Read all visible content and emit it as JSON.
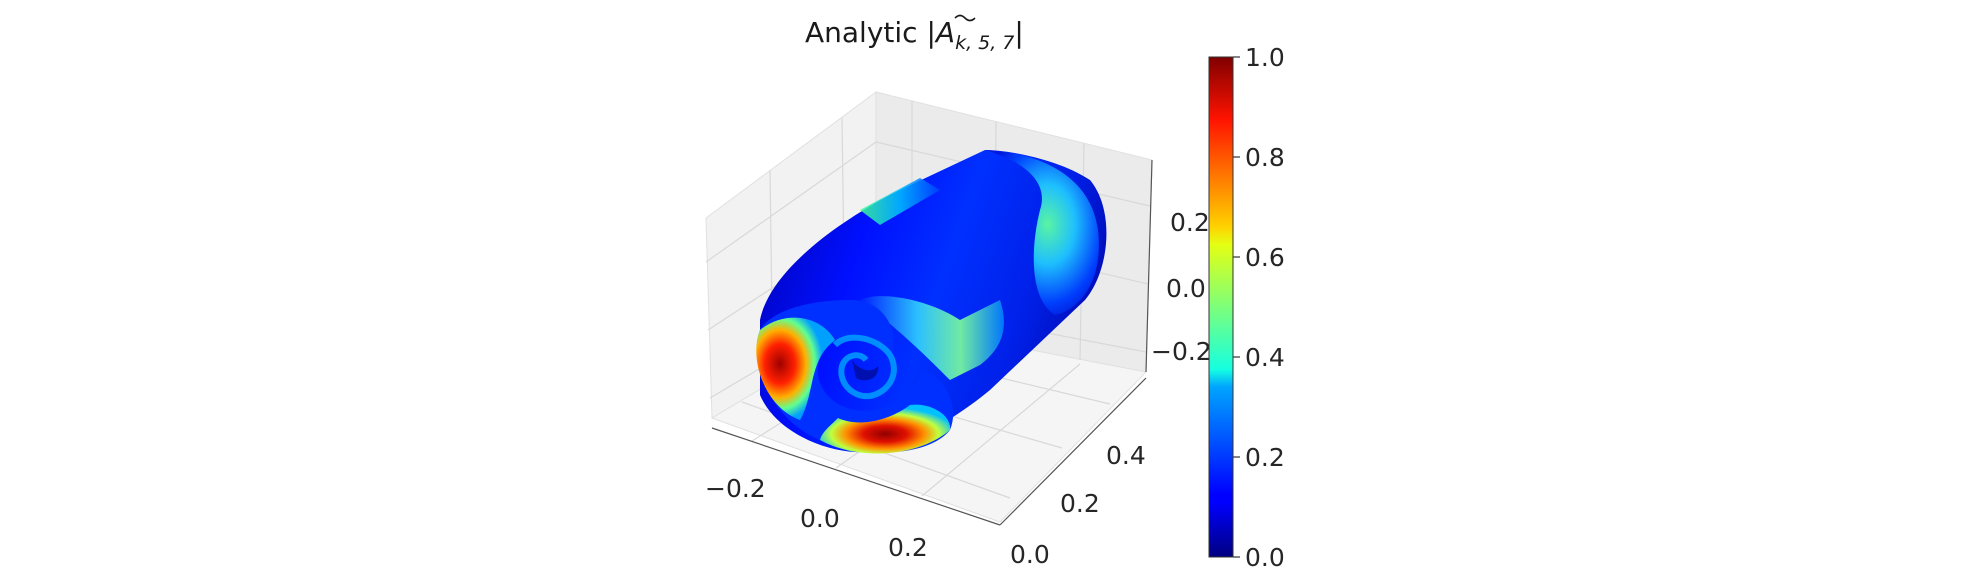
{
  "chart_data": {
    "type": "surface3d",
    "title": {
      "prefix": "Analytic |",
      "symbol": "A",
      "subscript": "k, 5, 7",
      "suffix": "|"
    },
    "colormap": "jet",
    "axes": {
      "x": {
        "ticks": [
          "−0.2",
          "0.0",
          "0.2"
        ],
        "values": [
          -0.2,
          0.0,
          0.2
        ]
      },
      "y": {
        "ticks": [
          "0.0",
          "0.2",
          "0.4"
        ],
        "values": [
          0.0,
          0.2,
          0.4
        ]
      },
      "z": {
        "ticks": [
          "0.2",
          "0.0",
          "−0.2"
        ],
        "values": [
          0.2,
          0.0,
          -0.2
        ]
      }
    },
    "colorbar": {
      "range": [
        0.0,
        1.0
      ],
      "ticks": [
        "1.0",
        "0.8",
        "0.6",
        "0.4",
        "0.2",
        "0.0"
      ],
      "values": [
        1.0,
        0.8,
        0.6,
        0.4,
        0.2,
        0.0
      ]
    },
    "surface": {
      "shape": "spiral sheet extruded along y",
      "highlights": [
        {
          "region": "front face, left lobe",
          "value": 0.95
        },
        {
          "region": "front face, bottom lobe",
          "value": 1.0
        },
        {
          "region": "inner band",
          "value": 0.4
        },
        {
          "region": "right end cap",
          "value": 0.35
        },
        {
          "region": "outer shell",
          "value": 0.08
        }
      ]
    }
  }
}
